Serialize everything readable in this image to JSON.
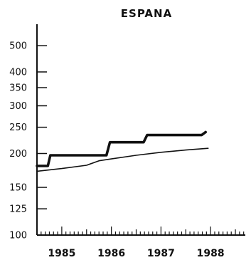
{
  "chart_data": {
    "type": "line",
    "title": "ESPANA",
    "xlabel": "",
    "ylabel": "",
    "y_scale": "log",
    "ylim": [
      100,
      600
    ],
    "xlim": [
      1984.5,
      1988.7
    ],
    "y_ticks": [
      100,
      125,
      150,
      200,
      250,
      300,
      350,
      400,
      500
    ],
    "x_ticks": [
      1985,
      1986,
      1987,
      1988
    ],
    "grid": false,
    "legend": "none",
    "series": [
      {
        "style": "thick",
        "color": "#111111",
        "step": true,
        "x": [
          1984.5,
          1984.72,
          1984.77,
          1985.9,
          1985.97,
          1986.65,
          1986.72,
          1987.82,
          1987.9
        ],
        "y": [
          180,
          180,
          197,
          197,
          220,
          220,
          234,
          234,
          240
        ]
      },
      {
        "style": "thin",
        "color": "#111111",
        "step": false,
        "x": [
          1984.5,
          1985.0,
          1985.5,
          1985.75,
          1986.0,
          1986.5,
          1987.0,
          1987.5,
          1987.95
        ],
        "y": [
          172,
          176,
          181,
          188,
          191,
          197,
          202,
          206,
          209
        ]
      }
    ]
  }
}
